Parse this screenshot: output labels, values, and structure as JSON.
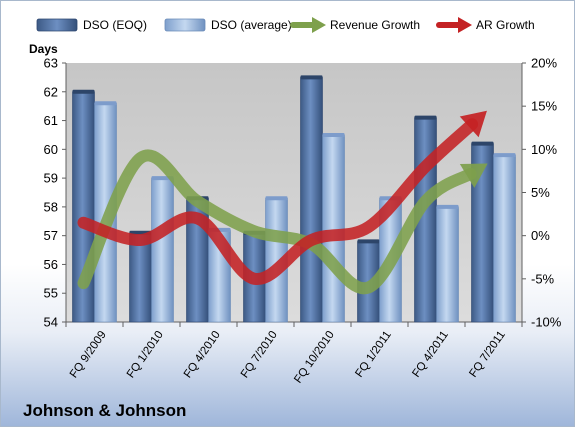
{
  "chart_data": {
    "type": "bar",
    "title": "",
    "company_label": "Johnson & Johnson",
    "y_left_label": "Days",
    "categories": [
      "FQ 9/2009",
      "FQ 1/2010",
      "FQ 4/2010",
      "FQ 7/2010",
      "FQ 10/2010",
      "FQ 1/2011",
      "FQ 4/2011",
      "FQ 7/2011"
    ],
    "ylim_left": [
      54,
      63
    ],
    "yticks_left": [
      "54",
      "55",
      "56",
      "57",
      "58",
      "59",
      "60",
      "61",
      "62",
      "63"
    ],
    "ylim_right": [
      -10,
      20
    ],
    "yticks_right": [
      "-10%",
      "-5%",
      "0%",
      "5%",
      "10%",
      "15%",
      "20%"
    ],
    "series": [
      {
        "name": "DSO (EOQ)",
        "kind": "bar",
        "axis": "left",
        "color": "#4f6f9e",
        "values": [
          62.0,
          57.1,
          58.3,
          57.1,
          62.5,
          56.8,
          61.1,
          60.2
        ]
      },
      {
        "name": "DSO (average)",
        "kind": "bar",
        "axis": "left",
        "color": "#9ebce0",
        "values": [
          61.6,
          59.0,
          57.2,
          58.3,
          60.5,
          58.3,
          58.0,
          59.8
        ]
      },
      {
        "name": "Revenue Growth",
        "kind": "line",
        "axis": "right",
        "color": "#7ea04c",
        "values": [
          -5.5,
          9.0,
          4.0,
          0.5,
          -1.0,
          -6.0,
          4.0,
          8.0
        ]
      },
      {
        "name": "AR Growth",
        "kind": "line",
        "axis": "right",
        "color": "#c42224",
        "values": [
          1.5,
          -0.5,
          2.0,
          -5.0,
          -0.5,
          1.0,
          8.0,
          14.0
        ]
      }
    ],
    "grid": false,
    "legend_position": "top"
  }
}
